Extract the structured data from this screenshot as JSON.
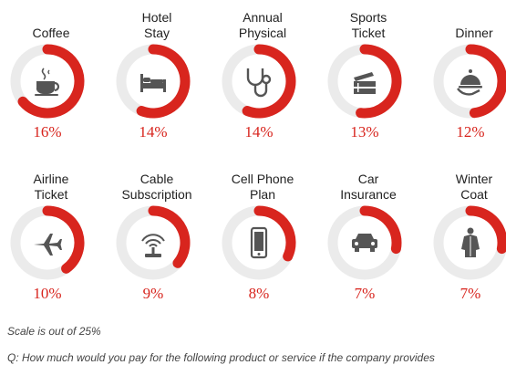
{
  "chart_data": {
    "type": "donut",
    "scale_max": 25,
    "items": [
      {
        "label_lines": [
          "Coffee"
        ],
        "value": 16,
        "value_label": "16%",
        "icon": "coffee-cup-icon"
      },
      {
        "label_lines": [
          "Hotel",
          "Stay"
        ],
        "value": 14,
        "value_label": "14%",
        "icon": "bed-icon"
      },
      {
        "label_lines": [
          "Annual",
          "Physical"
        ],
        "value": 14,
        "value_label": "14%",
        "icon": "stethoscope-icon"
      },
      {
        "label_lines": [
          "Sports",
          "Ticket"
        ],
        "value": 13,
        "value_label": "13%",
        "icon": "ticket-icon"
      },
      {
        "label_lines": [
          "Dinner"
        ],
        "value": 12,
        "value_label": "12%",
        "icon": "cloche-icon"
      },
      {
        "label_lines": [
          "Airline",
          "Ticket"
        ],
        "value": 10,
        "value_label": "10%",
        "icon": "airplane-icon"
      },
      {
        "label_lines": [
          "Cable",
          "Subscription"
        ],
        "value": 9,
        "value_label": "9%",
        "icon": "antenna-icon"
      },
      {
        "label_lines": [
          "Cell Phone",
          "Plan"
        ],
        "value": 8,
        "value_label": "8%",
        "icon": "smartphone-icon"
      },
      {
        "label_lines": [
          "Car",
          "Insurance"
        ],
        "value": 7,
        "value_label": "7%",
        "icon": "car-icon"
      },
      {
        "label_lines": [
          "Winter",
          "Coat"
        ],
        "value": 7,
        "value_label": "7%",
        "icon": "coat-icon"
      }
    ],
    "colors": {
      "arc": "#d8251e",
      "track": "#ebebeb",
      "icon": "#555555",
      "value_text": "#d8251e"
    }
  },
  "footnotes": {
    "scale": "Scale is out of 25%",
    "question": "Q: How much would you pay for the following product or service if the company provides"
  }
}
